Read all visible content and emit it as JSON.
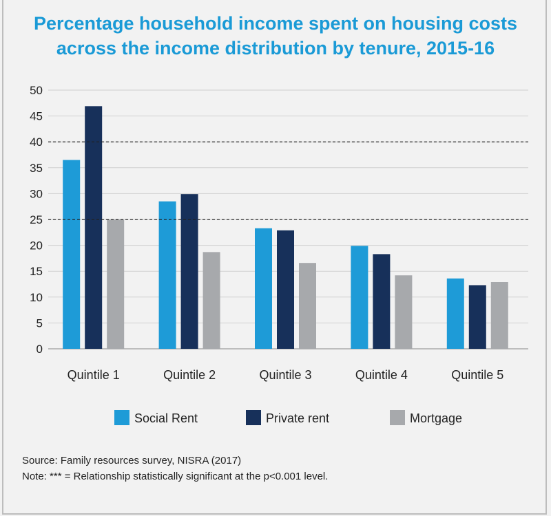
{
  "chart_data": {
    "type": "bar",
    "title_lines": [
      "Percentage household income spent on housing costs",
      "across the income distribution by tenure, 2015-16"
    ],
    "categories": [
      "Quintile 1",
      "Quintile 2",
      "Quintile 3",
      "Quintile 4",
      "Quintile 5"
    ],
    "series": [
      {
        "name": "Social Rent",
        "color": "#1e9bd7",
        "values": [
          36.5,
          28.5,
          23.3,
          19.9,
          13.6
        ]
      },
      {
        "name": "Private rent",
        "color": "#17305a",
        "values": [
          46.9,
          29.9,
          22.9,
          18.3,
          12.3
        ]
      },
      {
        "name": "Mortgage",
        "color": "#a7a9ac",
        "values": [
          25.0,
          18.7,
          16.6,
          14.2,
          12.9
        ]
      }
    ],
    "ylim": [
      0,
      50
    ],
    "yticks": [
      "0",
      "5",
      "10",
      "15",
      "20",
      "25",
      "30",
      "35",
      "40",
      "45",
      "50"
    ],
    "reference_lines": [
      25,
      40
    ],
    "grid": true,
    "legend_position": "bottom"
  },
  "notes": {
    "source": "Source: Family resources survey, NISRA (2017)",
    "note": "Note: *** = Relationship statistically significant at the p<0.001 level."
  }
}
